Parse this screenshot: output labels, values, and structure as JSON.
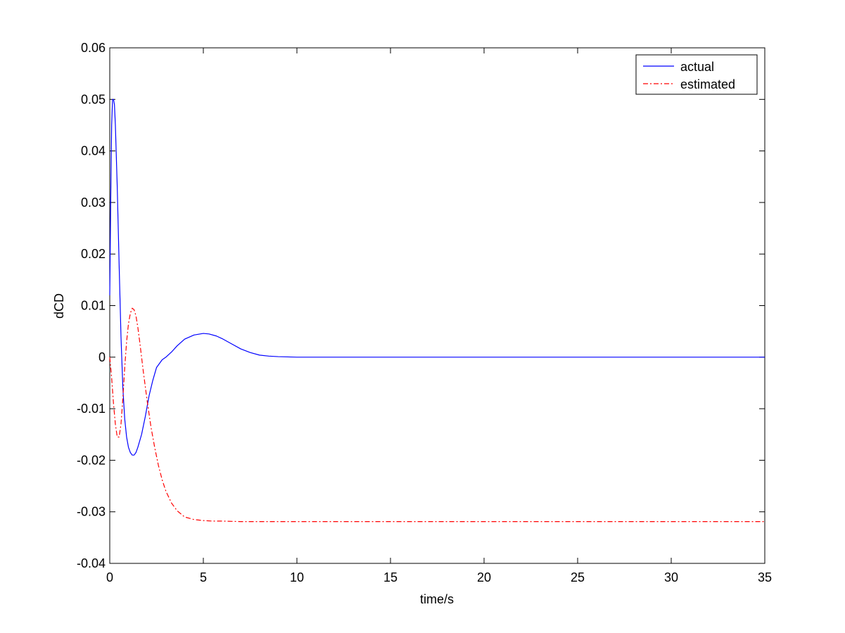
{
  "chart_data": {
    "type": "line",
    "xlabel": "time/s",
    "ylabel": "dCD",
    "xlim": [
      0,
      35
    ],
    "ylim": [
      -0.04,
      0.06
    ],
    "xticks": [
      0,
      5,
      10,
      15,
      20,
      25,
      30,
      35
    ],
    "xtick_labels": [
      "0",
      "5",
      "10",
      "15",
      "20",
      "25",
      "30",
      "35"
    ],
    "yticks": [
      -0.04,
      -0.03,
      -0.02,
      -0.01,
      0,
      0.01,
      0.02,
      0.03,
      0.04,
      0.05,
      0.06
    ],
    "ytick_labels": [
      "-0.04",
      "-0.03",
      "-0.02",
      "-0.01",
      "0",
      "0.01",
      "0.02",
      "0.03",
      "0.04",
      "0.05",
      "0.06"
    ],
    "grid": false,
    "legend_position": "top-right",
    "series": [
      {
        "name": "actual",
        "color": "#0000ff",
        "style": "solid",
        "x": [
          0,
          0.05,
          0.1,
          0.15,
          0.2,
          0.25,
          0.3,
          0.4,
          0.5,
          0.6,
          0.7,
          0.8,
          0.9,
          1.0,
          1.1,
          1.2,
          1.3,
          1.4,
          1.5,
          1.7,
          1.9,
          2.1,
          2.3,
          2.5,
          2.8,
          3.0,
          3.3,
          3.6,
          4.0,
          4.5,
          5.0,
          5.3,
          5.7,
          6.0,
          6.5,
          7.0,
          7.5,
          8.0,
          8.5,
          9.0,
          10.0,
          11.0,
          12.0,
          35.0
        ],
        "y": [
          0.012,
          0.03,
          0.045,
          0.05,
          0.05,
          0.049,
          0.045,
          0.033,
          0.018,
          0.004,
          -0.006,
          -0.012,
          -0.0155,
          -0.0175,
          -0.0185,
          -0.019,
          -0.019,
          -0.0185,
          -0.0175,
          -0.015,
          -0.0115,
          -0.0075,
          -0.0045,
          -0.002,
          -0.0005,
          0.0,
          0.001,
          0.0022,
          0.0035,
          0.0043,
          0.0046,
          0.0045,
          0.0041,
          0.0036,
          0.0026,
          0.0016,
          0.0009,
          0.0004,
          0.0002,
          0.0001,
          0.0,
          0.0,
          0.0,
          0.0
        ]
      },
      {
        "name": "estimated",
        "color": "#ff0000",
        "style": "dashdot",
        "x": [
          0,
          0.1,
          0.2,
          0.3,
          0.4,
          0.5,
          0.6,
          0.7,
          0.8,
          0.9,
          1.0,
          1.1,
          1.2,
          1.3,
          1.4,
          1.5,
          1.6,
          1.7,
          1.8,
          2.0,
          2.2,
          2.4,
          2.6,
          2.8,
          3.0,
          3.3,
          3.6,
          4.0,
          4.5,
          5.0,
          5.5,
          6.0,
          7.0,
          8.0,
          10.0,
          35.0
        ],
        "y": [
          0.0,
          -0.004,
          -0.009,
          -0.013,
          -0.0155,
          -0.0155,
          -0.013,
          -0.008,
          -0.002,
          0.003,
          0.0065,
          0.0085,
          0.0095,
          0.0092,
          0.008,
          0.0058,
          0.003,
          0.0,
          -0.003,
          -0.0085,
          -0.0135,
          -0.0175,
          -0.021,
          -0.0238,
          -0.026,
          -0.0283,
          -0.0298,
          -0.031,
          -0.0315,
          -0.0317,
          -0.0318,
          -0.0318,
          -0.0319,
          -0.0319,
          -0.0319,
          -0.0319
        ]
      }
    ]
  }
}
